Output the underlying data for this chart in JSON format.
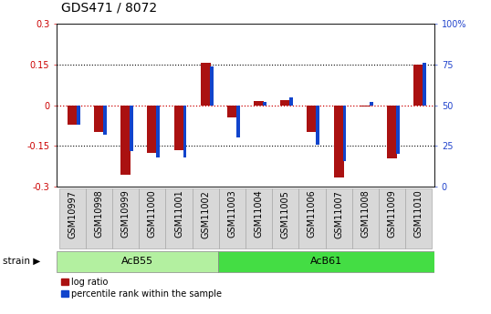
{
  "title": "GDS471 / 8072",
  "samples": [
    "GSM10997",
    "GSM10998",
    "GSM10999",
    "GSM11000",
    "GSM11001",
    "GSM11002",
    "GSM11003",
    "GSM11004",
    "GSM11005",
    "GSM11006",
    "GSM11007",
    "GSM11008",
    "GSM11009",
    "GSM11010"
  ],
  "log_ratio": [
    -0.07,
    -0.1,
    -0.255,
    -0.175,
    -0.165,
    0.155,
    -0.045,
    0.015,
    0.02,
    -0.1,
    -0.265,
    -0.005,
    -0.195,
    0.15
  ],
  "pct_rank": [
    38,
    32,
    22,
    18,
    18,
    74,
    30,
    52,
    55,
    26,
    16,
    52,
    20,
    76
  ],
  "groups": [
    {
      "label": "AcB55",
      "start": 0,
      "end": 6,
      "color": "#b3f0a0"
    },
    {
      "label": "AcB61",
      "start": 6,
      "end": 14,
      "color": "#44dd44"
    }
  ],
  "ylim": [
    -0.3,
    0.3
  ],
  "yticks_left": [
    -0.3,
    -0.15,
    0,
    0.15,
    0.3
  ],
  "yticks_right": [
    0,
    25,
    50,
    75,
    100
  ],
  "bar_color_red": "#aa1111",
  "bar_color_blue": "#1144cc",
  "dotted_line_color": "#000000",
  "zero_line_color": "#cc0000",
  "legend_items": [
    "log ratio",
    "percentile rank within the sample"
  ],
  "title_fontsize": 10,
  "tick_fontsize": 7,
  "label_fontsize": 7.5,
  "xticklabel_bg": "#d8d8d8"
}
